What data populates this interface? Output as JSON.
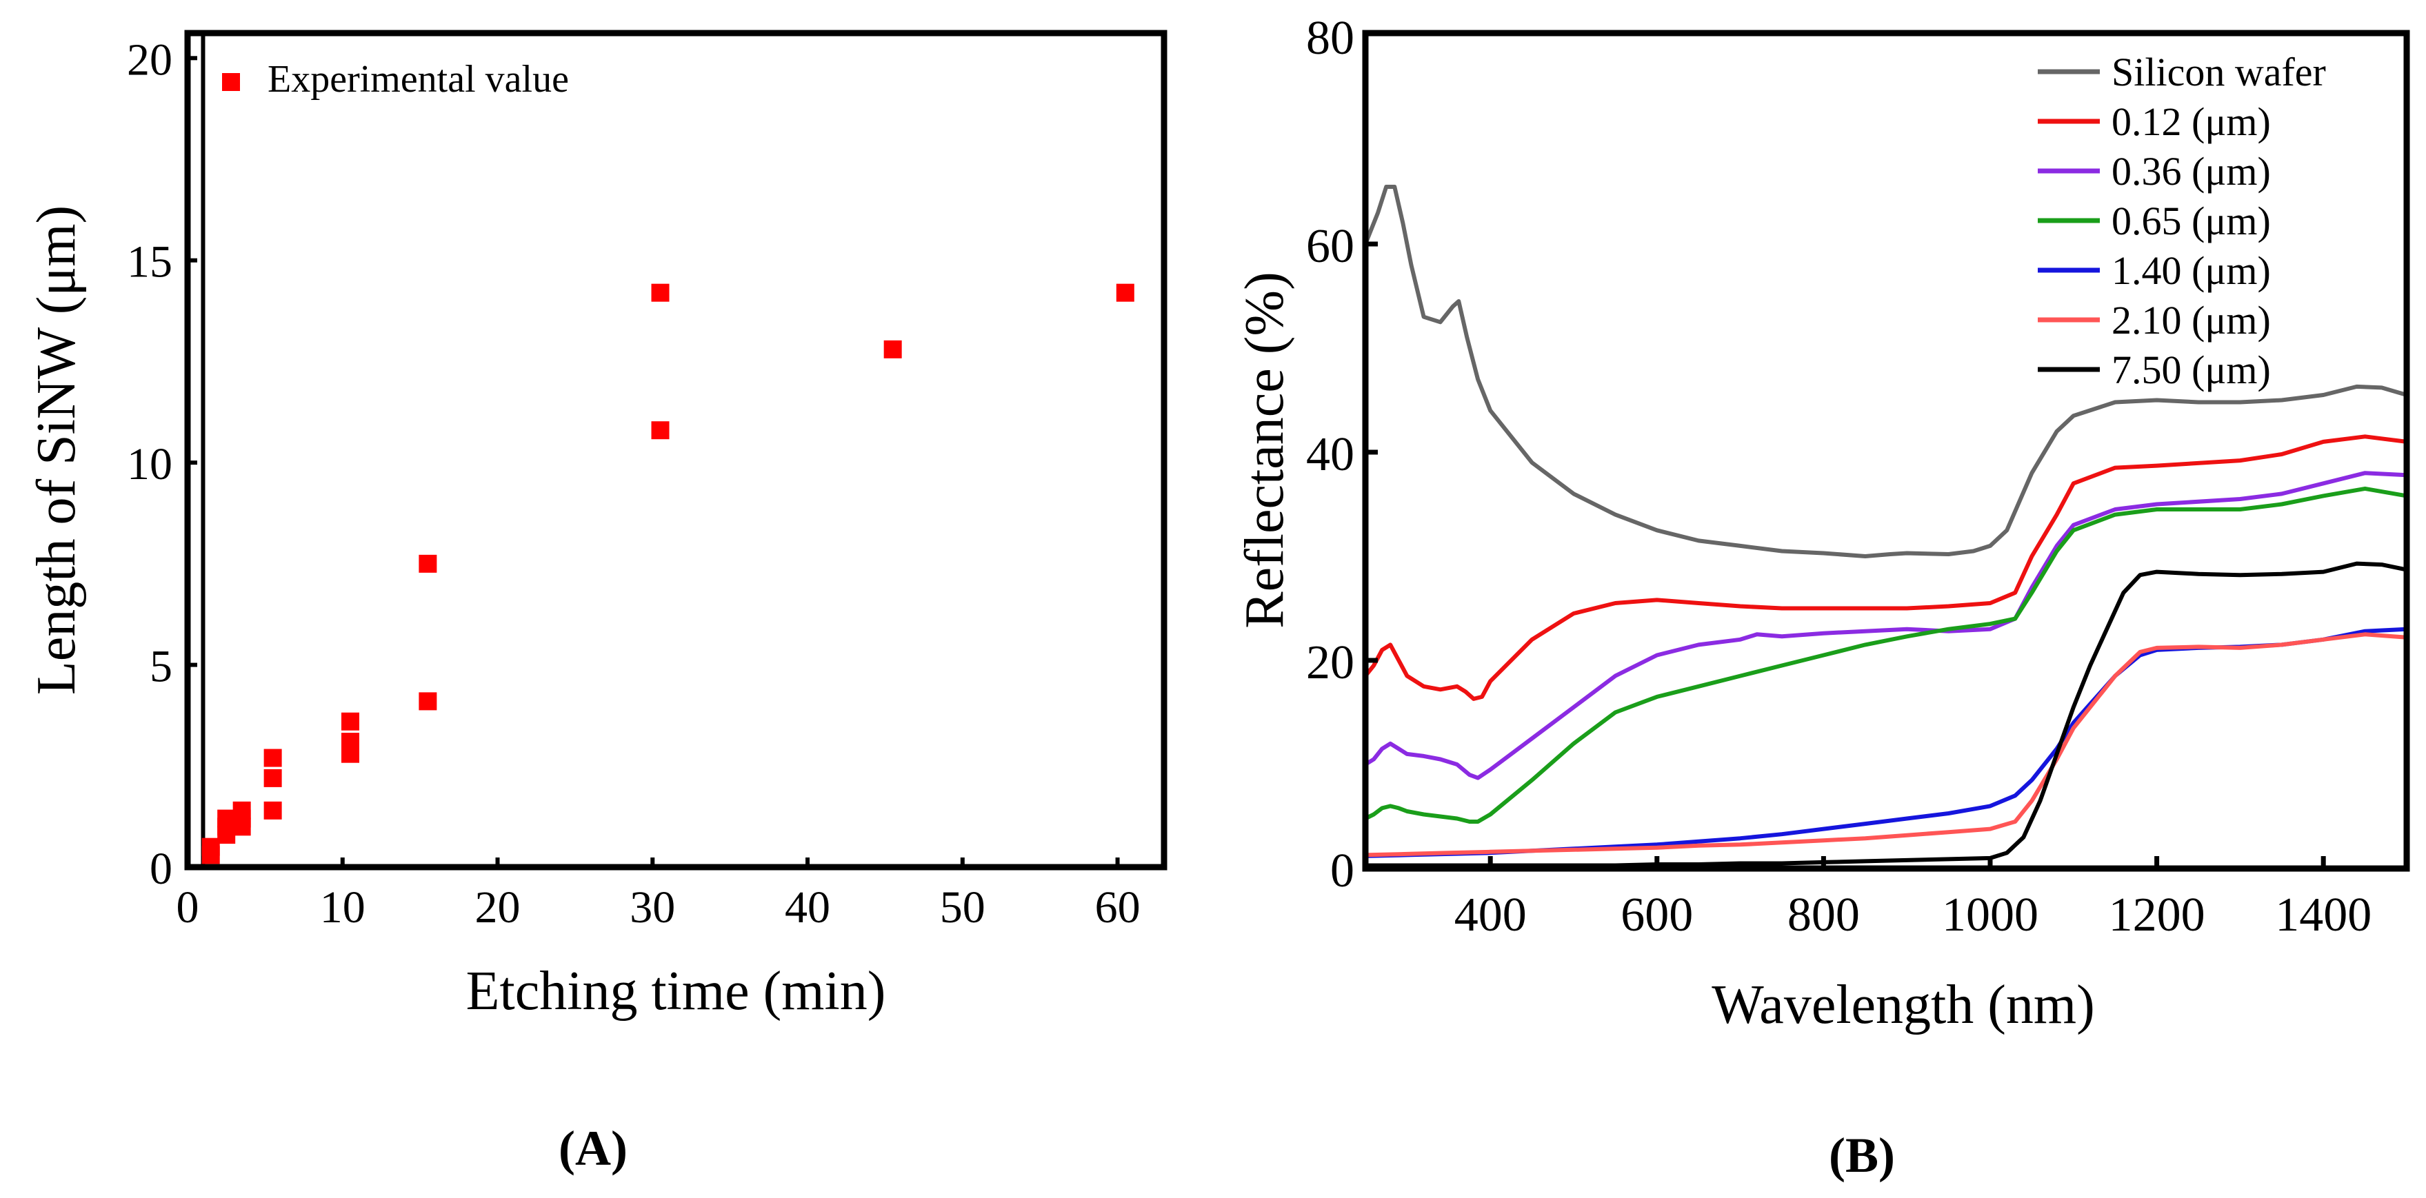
{
  "chart_data": [
    {
      "type": "scatter",
      "panel_label": "(A)",
      "xlabel": "Etching time (min)",
      "ylabel": "Length of SiNW (μm)",
      "xlim": [
        0,
        63
      ],
      "ylim": [
        0,
        20
      ],
      "xticks": [
        0,
        10,
        20,
        30,
        40,
        50,
        60
      ],
      "yticks": [
        0,
        5,
        10,
        15,
        20
      ],
      "legend": {
        "placement": "top-left",
        "entries": [
          "Experimental value"
        ]
      },
      "marker_color": "#ff0000",
      "series": [
        {
          "name": "Experimental value",
          "points": [
            [
              1.5,
              0.3
            ],
            [
              1.5,
              0.5
            ],
            [
              2.5,
              0.8
            ],
            [
              2.5,
              1.0
            ],
            [
              2.5,
              1.2
            ],
            [
              3.5,
              1.0
            ],
            [
              3.5,
              1.2
            ],
            [
              3.5,
              1.4
            ],
            [
              5.5,
              1.4
            ],
            [
              5.5,
              2.2
            ],
            [
              5.5,
              2.7
            ],
            [
              10.5,
              2.8
            ],
            [
              10.5,
              3.1
            ],
            [
              10.5,
              3.6
            ],
            [
              15.5,
              4.1
            ],
            [
              15.5,
              7.5
            ],
            [
              30.5,
              10.8
            ],
            [
              30.5,
              14.2
            ],
            [
              45.5,
              12.8
            ],
            [
              60.5,
              14.2
            ]
          ]
        }
      ]
    },
    {
      "type": "line",
      "panel_label": "(B)",
      "xlabel": "Wavelength (nm)",
      "ylabel": "Reflectance (%)",
      "xlim": [
        250,
        1500
      ],
      "ylim": [
        0,
        80
      ],
      "xticks": [
        400,
        600,
        800,
        1000,
        1200,
        1400
      ],
      "yticks": [
        0,
        20,
        40,
        60,
        80
      ],
      "legend": {
        "placement": "top-right"
      },
      "series": [
        {
          "name": "Silicon wafer",
          "color": "#666666",
          "x": [
            250,
            265,
            275,
            285,
            295,
            305,
            320,
            340,
            355,
            362,
            372,
            385,
            400,
            450,
            500,
            550,
            600,
            650,
            700,
            750,
            800,
            850,
            880,
            900,
            950,
            980,
            1000,
            1020,
            1050,
            1080,
            1100,
            1150,
            1200,
            1250,
            1300,
            1350,
            1400,
            1440,
            1470,
            1500
          ],
          "y": [
            60,
            63,
            65.5,
            65.5,
            62,
            58,
            53,
            52.5,
            54,
            54.5,
            51,
            47,
            44,
            39,
            36,
            34,
            32.5,
            31.5,
            31,
            30.5,
            30.3,
            30,
            30.2,
            30.3,
            30.2,
            30.5,
            31,
            32.5,
            38,
            42,
            43.5,
            44.8,
            45,
            44.8,
            44.8,
            45,
            45.5,
            46.3,
            46.2,
            45.5
          ]
        },
        {
          "name": "0.12 (μm)",
          "color": "#ee1111",
          "x": [
            250,
            260,
            270,
            280,
            290,
            300,
            320,
            340,
            360,
            370,
            380,
            390,
            400,
            450,
            500,
            550,
            600,
            650,
            700,
            750,
            800,
            850,
            900,
            950,
            1000,
            1030,
            1050,
            1080,
            1100,
            1150,
            1200,
            1300,
            1350,
            1400,
            1450,
            1500
          ],
          "y": [
            18.5,
            19.5,
            21,
            21.5,
            20,
            18.5,
            17.5,
            17.2,
            17.5,
            17,
            16.3,
            16.5,
            18,
            22,
            24.5,
            25.5,
            25.8,
            25.5,
            25.2,
            25,
            25,
            25,
            25,
            25.2,
            25.5,
            26.5,
            30,
            34,
            37,
            38.5,
            38.7,
            39.2,
            39.8,
            41,
            41.5,
            41
          ]
        },
        {
          "name": "0.36 (μm)",
          "color": "#8b2be2",
          "x": [
            250,
            260,
            270,
            280,
            290,
            300,
            320,
            340,
            360,
            375,
            385,
            400,
            450,
            500,
            550,
            600,
            650,
            700,
            720,
            750,
            800,
            850,
            900,
            950,
            1000,
            1030,
            1050,
            1080,
            1100,
            1150,
            1200,
            1300,
            1350,
            1400,
            1450,
            1500
          ],
          "y": [
            10,
            10.5,
            11.5,
            12,
            11.5,
            11,
            10.8,
            10.5,
            10,
            9,
            8.7,
            9.5,
            12.5,
            15.5,
            18.5,
            20.5,
            21.5,
            22,
            22.5,
            22.3,
            22.6,
            22.8,
            23,
            22.8,
            23,
            24,
            27,
            31,
            33,
            34.5,
            35,
            35.5,
            36,
            37,
            38,
            37.8
          ]
        },
        {
          "name": "0.65 (μm)",
          "color": "#1a9e1a",
          "x": [
            250,
            260,
            270,
            280,
            290,
            300,
            320,
            340,
            360,
            375,
            385,
            400,
            450,
            500,
            550,
            600,
            650,
            700,
            750,
            800,
            850,
            900,
            950,
            1000,
            1030,
            1050,
            1080,
            1100,
            1150,
            1200,
            1300,
            1350,
            1400,
            1450,
            1500
          ],
          "y": [
            4.8,
            5.2,
            5.8,
            6,
            5.8,
            5.5,
            5.2,
            5,
            4.8,
            4.5,
            4.5,
            5.2,
            8.5,
            12,
            15,
            16.5,
            17.5,
            18.5,
            19.5,
            20.5,
            21.5,
            22.3,
            23,
            23.5,
            24,
            26.5,
            30.5,
            32.5,
            34,
            34.5,
            34.5,
            35,
            35.8,
            36.5,
            35.8
          ]
        },
        {
          "name": "1.40 (μm)",
          "color": "#1515dd",
          "x": [
            250,
            300,
            350,
            400,
            450,
            500,
            550,
            600,
            650,
            700,
            750,
            800,
            850,
            900,
            950,
            1000,
            1030,
            1050,
            1080,
            1100,
            1150,
            1180,
            1200,
            1250,
            1300,
            1350,
            1400,
            1450,
            1500
          ],
          "y": [
            1.2,
            1.3,
            1.4,
            1.5,
            1.7,
            1.9,
            2.1,
            2.3,
            2.6,
            2.9,
            3.3,
            3.8,
            4.3,
            4.8,
            5.3,
            6,
            7,
            8.5,
            11.5,
            14,
            18.5,
            20.5,
            21,
            21.2,
            21.3,
            21.5,
            22,
            22.8,
            23
          ]
        },
        {
          "name": "2.10 (μm)",
          "color": "#ff5555",
          "x": [
            250,
            300,
            350,
            400,
            450,
            500,
            550,
            600,
            650,
            700,
            750,
            800,
            850,
            900,
            950,
            1000,
            1030,
            1050,
            1080,
            1100,
            1150,
            1180,
            1200,
            1250,
            1300,
            1350,
            1400,
            1450,
            1500
          ],
          "y": [
            1.3,
            1.4,
            1.5,
            1.6,
            1.7,
            1.8,
            1.9,
            2,
            2.2,
            2.3,
            2.5,
            2.7,
            2.9,
            3.2,
            3.5,
            3.8,
            4.5,
            6.5,
            10.5,
            13.5,
            18.5,
            20.8,
            21.2,
            21.3,
            21.2,
            21.5,
            22,
            22.5,
            22.2
          ]
        },
        {
          "name": "7.50 (μm)",
          "color": "#000000",
          "x": [
            250,
            300,
            350,
            400,
            450,
            500,
            550,
            600,
            650,
            700,
            750,
            800,
            850,
            900,
            950,
            1000,
            1020,
            1040,
            1060,
            1080,
            1100,
            1120,
            1140,
            1160,
            1180,
            1200,
            1250,
            1300,
            1350,
            1400,
            1440,
            1470,
            1500
          ],
          "y": [
            0.3,
            0.3,
            0.3,
            0.3,
            0.3,
            0.3,
            0.3,
            0.4,
            0.4,
            0.5,
            0.5,
            0.6,
            0.7,
            0.8,
            0.9,
            1,
            1.5,
            3,
            6.5,
            11,
            15.5,
            19.5,
            23,
            26.5,
            28.2,
            28.5,
            28.3,
            28.2,
            28.3,
            28.5,
            29.3,
            29.2,
            28.7
          ]
        }
      ]
    }
  ]
}
